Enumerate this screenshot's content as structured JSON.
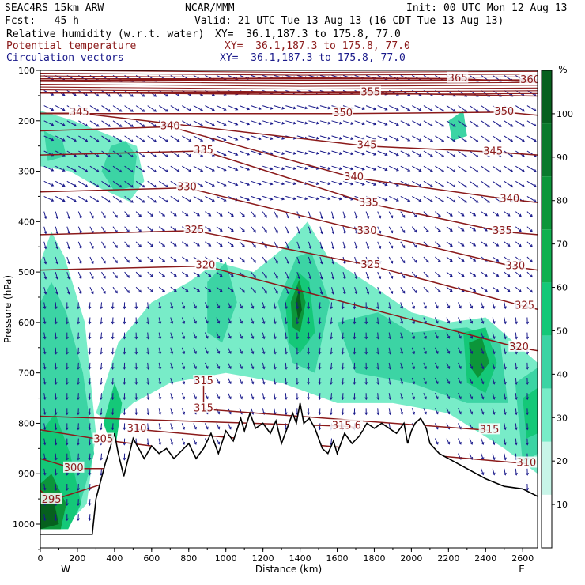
{
  "header": {
    "model": "SEAC4RS 15km ARW",
    "forecast": "Fcst:   45 h",
    "center": "NCAR/MMM",
    "init": "Init: 00 UTC Mon 12 Aug 13",
    "valid": "Valid: 21 UTC Tue 13 Aug 13 (16 CDT Tue 13 Aug 13)",
    "fields": [
      {
        "name": "Relative humidity (w.r.t. water)",
        "xy": "XY=  36.1,187.3 to 175.8, 77.0",
        "color": "#000000"
      },
      {
        "name": "Potential temperature",
        "xy": "XY=  36.1,187.3 to 175.8, 77.0",
        "color": "#8B1A1A"
      },
      {
        "name": "Circulation vectors",
        "xy": "XY=  36.1,187.3 to 175.8, 77.0",
        "color": "#1A1A8B"
      }
    ]
  },
  "chart_data": {
    "type": "cross-section",
    "xlabel": "Distance (km)",
    "ylabel": "Pressure (hPa)",
    "xlim": [
      0,
      2680
    ],
    "ylim": [
      1050,
      100
    ],
    "x_ticks": [
      "0",
      "200",
      "400",
      "600",
      "800",
      "1000",
      "1200",
      "1400",
      "1600",
      "1800",
      "2000",
      "2200",
      "2400",
      "2600"
    ],
    "y_ticks": [
      "100",
      "200",
      "300",
      "400",
      "500",
      "600",
      "700",
      "800",
      "900",
      "1000"
    ],
    "endpoint_labels": {
      "left": "W",
      "right": "E"
    },
    "colorbar": {
      "unit": "%",
      "ticks": [
        "10",
        "20",
        "30",
        "40",
        "50",
        "60",
        "70",
        "80",
        "90",
        "100"
      ],
      "levels": [
        30,
        40,
        50,
        60,
        70,
        80,
        90,
        100
      ],
      "colors": [
        "#ffffff",
        "#c8f5e8",
        "#78ecc8",
        "#3cd4a4",
        "#14c878",
        "#10b050",
        "#0c963a",
        "#0a7a2c",
        "#06601e"
      ]
    },
    "terrain": {
      "x": [
        0,
        280,
        300,
        350,
        400,
        420,
        450,
        480,
        500,
        530,
        560,
        600,
        640,
        680,
        720,
        760,
        800,
        840,
        880,
        920,
        960,
        1000,
        1040,
        1080,
        1100,
        1130,
        1160,
        1200,
        1240,
        1270,
        1300,
        1330,
        1360,
        1380,
        1400,
        1420,
        1450,
        1480,
        1520,
        1550,
        1580,
        1600,
        1640,
        1680,
        1720,
        1760,
        1800,
        1840,
        1880,
        1920,
        1960,
        1980,
        2000,
        2020,
        2050,
        2080,
        2100,
        2150,
        2200,
        2300,
        2400,
        2500,
        2600,
        2680
      ],
      "p": [
        1020,
        1020,
        950,
        880,
        820,
        860,
        905,
        860,
        830,
        850,
        870,
        845,
        860,
        850,
        870,
        855,
        840,
        870,
        850,
        820,
        860,
        815,
        835,
        790,
        815,
        780,
        810,
        800,
        820,
        795,
        840,
        810,
        780,
        800,
        760,
        800,
        790,
        810,
        850,
        860,
        835,
        860,
        820,
        840,
        825,
        800,
        810,
        800,
        810,
        820,
        800,
        840,
        815,
        800,
        790,
        810,
        840,
        860,
        870,
        890,
        910,
        925,
        930,
        945
      ]
    },
    "theta_levels": [
      {
        "label": "295",
        "x": 60,
        "p": 953
      },
      {
        "label": "300",
        "x": 180,
        "p": 890
      },
      {
        "label": "305",
        "x": 340,
        "p": 833
      },
      {
        "label": "310",
        "x": 520,
        "p": 812
      },
      {
        "label": "315",
        "x": 880,
        "p": 718
      },
      {
        "label": "315",
        "x": 880,
        "p": 772
      },
      {
        "label": "315.6",
        "x": 1650,
        "p": 806
      },
      {
        "label": "315",
        "x": 2420,
        "p": 814
      },
      {
        "label": "310",
        "x": 2620,
        "p": 880
      },
      {
        "label": "320",
        "x": 890,
        "p": 488
      },
      {
        "label": "320",
        "x": 2580,
        "p": 650
      },
      {
        "label": "325",
        "x": 830,
        "p": 418
      },
      {
        "label": "325",
        "x": 1780,
        "p": 487
      },
      {
        "label": "325",
        "x": 2610,
        "p": 568
      },
      {
        "label": "330",
        "x": 790,
        "p": 333
      },
      {
        "label": "330",
        "x": 1760,
        "p": 420
      },
      {
        "label": "330",
        "x": 2560,
        "p": 490
      },
      {
        "label": "335",
        "x": 880,
        "p": 260
      },
      {
        "label": "335",
        "x": 1770,
        "p": 364
      },
      {
        "label": "335",
        "x": 2490,
        "p": 420
      },
      {
        "label": "340",
        "x": 700,
        "p": 212
      },
      {
        "label": "340",
        "x": 1690,
        "p": 313
      },
      {
        "label": "340",
        "x": 2530,
        "p": 356
      },
      {
        "label": "345",
        "x": 210,
        "p": 185
      },
      {
        "label": "345",
        "x": 1760,
        "p": 250
      },
      {
        "label": "345",
        "x": 2440,
        "p": 262
      },
      {
        "label": "350",
        "x": 1630,
        "p": 186
      },
      {
        "label": "350",
        "x": 2500,
        "p": 183
      },
      {
        "label": "355",
        "x": 1780,
        "p": 145
      },
      {
        "label": "360",
        "x": 2640,
        "p": 120
      },
      {
        "label": "365",
        "x": 2250,
        "p": 117
      }
    ],
    "humid_regions": [
      {
        "level": 40,
        "pts": [
          [
            0,
            1010
          ],
          [
            0,
            480
          ],
          [
            60,
            420
          ],
          [
            130,
            470
          ],
          [
            240,
            600
          ],
          [
            300,
            820
          ],
          [
            250,
            960
          ],
          [
            120,
            1010
          ]
        ]
      },
      {
        "level": 40,
        "pts": [
          [
            0,
            180
          ],
          [
            180,
            200
          ],
          [
            380,
            230
          ],
          [
            520,
            250
          ],
          [
            560,
            320
          ],
          [
            480,
            360
          ],
          [
            300,
            330
          ],
          [
            160,
            300
          ],
          [
            0,
            290
          ]
        ]
      },
      {
        "level": 40,
        "pts": [
          [
            300,
            780
          ],
          [
            420,
            640
          ],
          [
            600,
            560
          ],
          [
            800,
            520
          ],
          [
            950,
            480
          ],
          [
            1150,
            500
          ],
          [
            1320,
            450
          ],
          [
            1440,
            400
          ],
          [
            1550,
            470
          ],
          [
            1800,
            530
          ],
          [
            2000,
            580
          ],
          [
            2200,
            600
          ],
          [
            2400,
            590
          ],
          [
            2680,
            680
          ],
          [
            2680,
            900
          ],
          [
            2500,
            850
          ],
          [
            2200,
            780
          ],
          [
            1900,
            760
          ],
          [
            1600,
            760
          ],
          [
            1300,
            720
          ],
          [
            1000,
            700
          ],
          [
            700,
            720
          ],
          [
            500,
            760
          ],
          [
            380,
            800
          ]
        ]
      },
      {
        "level": 50,
        "pts": [
          [
            0,
            1010
          ],
          [
            0,
            560
          ],
          [
            60,
            520
          ],
          [
            140,
            580
          ],
          [
            230,
            700
          ],
          [
            290,
            860
          ],
          [
            200,
            980
          ],
          [
            80,
            1010
          ]
        ]
      },
      {
        "level": 50,
        "pts": [
          [
            20,
            220
          ],
          [
            120,
            240
          ],
          [
            140,
            270
          ],
          [
            40,
            280
          ]
        ]
      },
      {
        "level": 50,
        "pts": [
          [
            380,
            250
          ],
          [
            460,
            240
          ],
          [
            520,
            270
          ],
          [
            500,
            330
          ],
          [
            400,
            340
          ],
          [
            330,
            300
          ]
        ]
      },
      {
        "level": 50,
        "pts": [
          [
            900,
            520
          ],
          [
            1000,
            480
          ],
          [
            1060,
            560
          ],
          [
            980,
            640
          ],
          [
            900,
            620
          ]
        ]
      },
      {
        "level": 50,
        "pts": [
          [
            1280,
            560
          ],
          [
            1380,
            470
          ],
          [
            1460,
            460
          ],
          [
            1560,
            560
          ],
          [
            1480,
            700
          ],
          [
            1360,
            680
          ]
        ]
      },
      {
        "level": 50,
        "pts": [
          [
            1600,
            600
          ],
          [
            1820,
            580
          ],
          [
            2000,
            620
          ],
          [
            2300,
            610
          ],
          [
            2480,
            640
          ],
          [
            2520,
            760
          ],
          [
            2300,
            760
          ],
          [
            2000,
            720
          ],
          [
            1700,
            700
          ]
        ]
      },
      {
        "level": 50,
        "pts": [
          [
            2560,
            720
          ],
          [
            2680,
            690
          ],
          [
            2680,
            860
          ],
          [
            2600,
            880
          ]
        ]
      },
      {
        "level": 50,
        "pts": [
          [
            2200,
            200
          ],
          [
            2280,
            180
          ],
          [
            2300,
            230
          ],
          [
            2220,
            240
          ]
        ]
      },
      {
        "level": 60,
        "pts": [
          [
            0,
            1010
          ],
          [
            0,
            820
          ],
          [
            80,
            780
          ],
          [
            160,
            860
          ],
          [
            220,
            960
          ],
          [
            150,
            1010
          ]
        ]
      },
      {
        "level": 60,
        "pts": [
          [
            340,
            800
          ],
          [
            400,
            720
          ],
          [
            440,
            760
          ],
          [
            400,
            860
          ]
        ]
      },
      {
        "level": 60,
        "pts": [
          [
            1320,
            560
          ],
          [
            1390,
            500
          ],
          [
            1450,
            520
          ],
          [
            1480,
            620
          ],
          [
            1400,
            660
          ],
          [
            1340,
            640
          ]
        ]
      },
      {
        "level": 60,
        "pts": [
          [
            2280,
            620
          ],
          [
            2400,
            610
          ],
          [
            2460,
            680
          ],
          [
            2400,
            740
          ],
          [
            2300,
            720
          ]
        ]
      },
      {
        "level": 60,
        "pts": [
          [
            2600,
            750
          ],
          [
            2680,
            730
          ],
          [
            2680,
            820
          ],
          [
            2620,
            830
          ]
        ]
      },
      {
        "level": 80,
        "pts": [
          [
            0,
            1010
          ],
          [
            0,
            920
          ],
          [
            60,
            900
          ],
          [
            140,
            960
          ],
          [
            110,
            1010
          ]
        ]
      },
      {
        "level": 80,
        "pts": [
          [
            1350,
            560
          ],
          [
            1395,
            515
          ],
          [
            1430,
            560
          ],
          [
            1400,
            620
          ],
          [
            1360,
            610
          ]
        ]
      },
      {
        "level": 80,
        "pts": [
          [
            2310,
            640
          ],
          [
            2380,
            630
          ],
          [
            2420,
            680
          ],
          [
            2360,
            710
          ],
          [
            2320,
            690
          ]
        ]
      },
      {
        "level": 100,
        "pts": [
          [
            0,
            1010
          ],
          [
            0,
            960
          ],
          [
            70,
            950
          ],
          [
            100,
            1000
          ]
        ]
      },
      {
        "level": 100,
        "pts": [
          [
            1375,
            560
          ],
          [
            1395,
            535
          ],
          [
            1410,
            575
          ],
          [
            1390,
            595
          ]
        ]
      }
    ]
  }
}
